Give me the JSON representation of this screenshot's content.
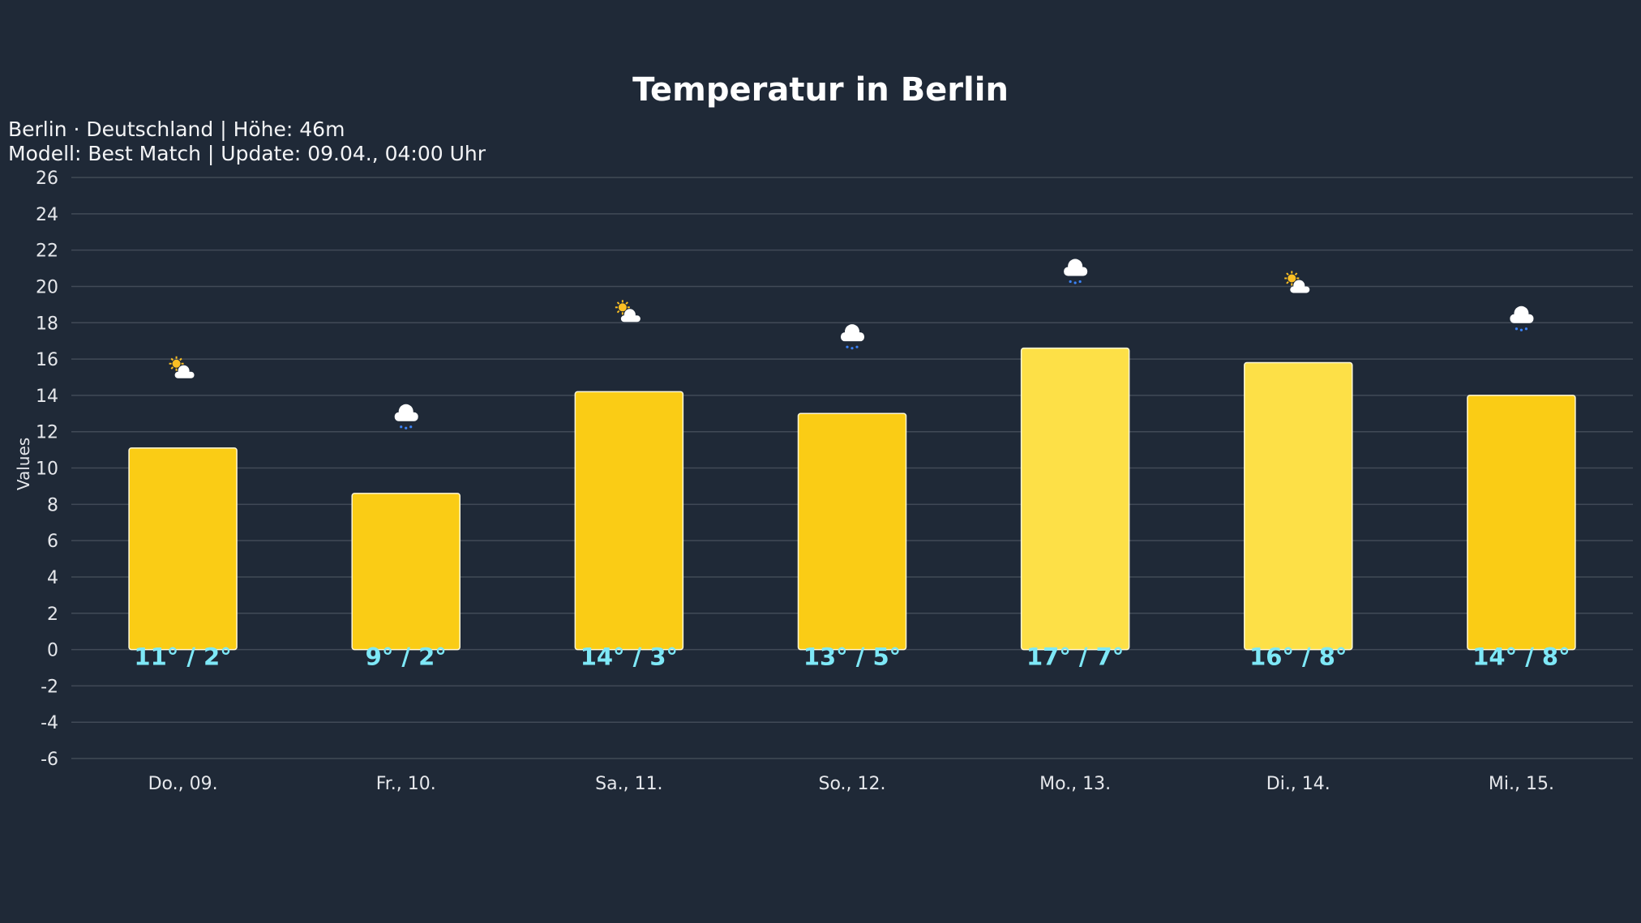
{
  "chart_data": {
    "type": "bar",
    "title": "Temperatur in Berlin",
    "subtitle_lines": [
      "Berlin · Deutschland | Höhe: 46m",
      "Modell: Best Match | Update: 09.04., 04:00 Uhr"
    ],
    "ylabel": "Values",
    "xlabel": "",
    "ylim": [
      -6,
      26
    ],
    "yticks": [
      26,
      24,
      22,
      20,
      18,
      16,
      14,
      12,
      10,
      8,
      6,
      4,
      2,
      0,
      -2,
      -4,
      -6
    ],
    "grid": true,
    "categories": [
      "Do., 09.",
      "Fr., 10.",
      "Sa., 11.",
      "So., 12.",
      "Mo., 13.",
      "Di., 14.",
      "Mi., 15."
    ],
    "values": [
      11.1,
      8.6,
      14.2,
      13.0,
      16.6,
      15.8,
      14.0
    ],
    "data_labels": [
      "11° / 2°",
      "9° / 2°",
      "14° / 3°",
      "13° / 5°",
      "17° / 7°",
      "16° / 8°",
      "14° / 8°"
    ],
    "weather_icons": [
      "partly-cloudy",
      "rain",
      "partly-cloudy",
      "rain",
      "rain",
      "partly-cloudy",
      "rain"
    ],
    "bar_colors": [
      "#facc15",
      "#facc15",
      "#facc15",
      "#facc15",
      "#fde047",
      "#fde047",
      "#facc15"
    ],
    "colors": {
      "background": "#1f2937",
      "label": "#7ee8f7",
      "grid": "#414a57",
      "sun": "#fbbf24",
      "rain": "#3b82f6"
    }
  }
}
